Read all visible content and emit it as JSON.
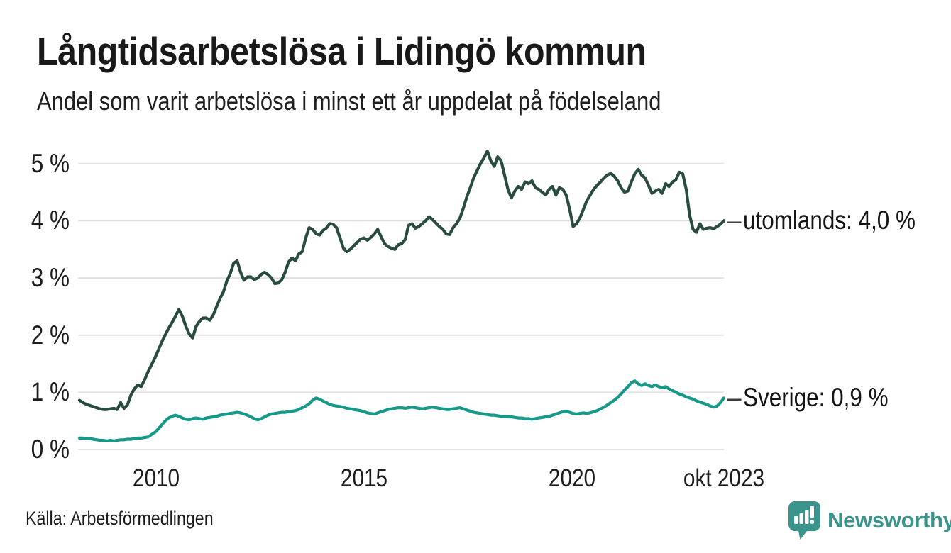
{
  "header": {
    "title": "Långtidsarbetslösa i Lidingö kommun",
    "subtitle": "Andel som varit arbetslösa i minst ett år uppdelat på födelseland"
  },
  "footer": {
    "source": "Källa: Arbetsförmedlingen",
    "brand": {
      "name": "Newsworthy",
      "color": "#3b948b",
      "icon": "bar-chart-pin-icon"
    }
  },
  "annotations": {
    "dash": "–"
  },
  "chart_data": {
    "type": "line",
    "title": "Långtidsarbetslösa i Lidingö kommun",
    "subtitle": "Andel som varit arbetslösa i minst ett år uppdelat på födelseland",
    "unit": "%",
    "frequency": "monthly",
    "x_start": "2008-02",
    "x_end": "2023-10",
    "ylim": [
      0,
      5.4
    ],
    "grid": "horizontal",
    "grid_color": "#e2e2e2",
    "legend_position": "end-of-line",
    "y_ticks": [
      {
        "label": "0 %",
        "value": 0
      },
      {
        "label": "1 %",
        "value": 1
      },
      {
        "label": "2 %",
        "value": 2
      },
      {
        "label": "3 %",
        "value": 3
      },
      {
        "label": "4 %",
        "value": 4
      },
      {
        "label": "5 %",
        "value": 5
      }
    ],
    "x_ticks": [
      {
        "label": "2010",
        "year": 2010
      },
      {
        "label": "2015",
        "year": 2015
      },
      {
        "label": "2020",
        "year": 2020
      },
      {
        "label": "okt 2023",
        "year": 2023.65
      }
    ],
    "series": [
      {
        "name": "utomlands",
        "color": "#2a4b3f",
        "end_label": "utomlands: 4,0 %",
        "last_value": 4.0,
        "values": [
          0.86,
          0.82,
          0.79,
          0.77,
          0.75,
          0.73,
          0.71,
          0.7,
          0.7,
          0.71,
          0.72,
          0.7,
          0.82,
          0.72,
          0.78,
          0.95,
          1.06,
          1.13,
          1.1,
          1.22,
          1.36,
          1.48,
          1.6,
          1.74,
          1.88,
          2.0,
          2.12,
          2.22,
          2.33,
          2.45,
          2.33,
          2.16,
          2.02,
          1.95,
          2.15,
          2.24,
          2.3,
          2.3,
          2.26,
          2.35,
          2.5,
          2.64,
          2.76,
          2.95,
          3.08,
          3.26,
          3.3,
          3.1,
          2.96,
          3.02,
          3.02,
          2.97,
          3.0,
          3.06,
          3.1,
          3.06,
          3.0,
          2.9,
          2.91,
          2.97,
          3.1,
          3.28,
          3.35,
          3.3,
          3.42,
          3.46,
          3.7,
          3.88,
          3.85,
          3.78,
          3.75,
          3.83,
          3.87,
          3.95,
          3.94,
          3.88,
          3.7,
          3.52,
          3.46,
          3.5,
          3.56,
          3.62,
          3.68,
          3.7,
          3.66,
          3.71,
          3.77,
          3.85,
          3.72,
          3.6,
          3.55,
          3.52,
          3.5,
          3.58,
          3.6,
          3.67,
          3.92,
          3.95,
          3.87,
          3.9,
          3.95,
          4.0,
          4.07,
          4.02,
          3.96,
          3.9,
          3.85,
          3.77,
          3.76,
          3.88,
          3.95,
          4.05,
          4.22,
          4.42,
          4.58,
          4.75,
          4.88,
          5.0,
          5.1,
          5.22,
          5.05,
          4.95,
          5.12,
          5.05,
          4.8,
          4.55,
          4.4,
          4.52,
          4.6,
          4.55,
          4.68,
          4.65,
          4.7,
          4.58,
          4.55,
          4.5,
          4.45,
          4.55,
          4.6,
          4.45,
          4.58,
          4.55,
          4.45,
          4.2,
          3.9,
          3.95,
          4.05,
          4.2,
          4.35,
          4.45,
          4.55,
          4.62,
          4.68,
          4.75,
          4.8,
          4.83,
          4.78,
          4.7,
          4.58,
          4.5,
          4.52,
          4.68,
          4.82,
          4.9,
          4.8,
          4.75,
          4.62,
          4.48,
          4.52,
          4.55,
          4.48,
          4.65,
          4.6,
          4.68,
          4.72,
          4.85,
          4.82,
          4.55,
          4.1,
          3.85,
          3.8,
          3.95,
          3.85,
          3.87,
          3.88,
          3.86,
          3.9,
          3.94,
          4.0
        ]
      },
      {
        "name": "Sverige",
        "color": "#17998a",
        "end_label": "Sverige: 0,9 %",
        "last_value": 0.9,
        "values": [
          0.2,
          0.2,
          0.19,
          0.19,
          0.18,
          0.17,
          0.16,
          0.16,
          0.15,
          0.16,
          0.15,
          0.16,
          0.17,
          0.17,
          0.18,
          0.18,
          0.19,
          0.2,
          0.2,
          0.21,
          0.22,
          0.26,
          0.3,
          0.36,
          0.43,
          0.5,
          0.55,
          0.58,
          0.6,
          0.58,
          0.55,
          0.53,
          0.52,
          0.54,
          0.55,
          0.54,
          0.53,
          0.55,
          0.56,
          0.57,
          0.58,
          0.6,
          0.61,
          0.62,
          0.63,
          0.64,
          0.65,
          0.64,
          0.62,
          0.6,
          0.57,
          0.54,
          0.52,
          0.54,
          0.57,
          0.6,
          0.62,
          0.63,
          0.64,
          0.65,
          0.65,
          0.66,
          0.67,
          0.68,
          0.7,
          0.73,
          0.76,
          0.8,
          0.86,
          0.9,
          0.88,
          0.85,
          0.82,
          0.79,
          0.77,
          0.76,
          0.75,
          0.74,
          0.72,
          0.71,
          0.7,
          0.69,
          0.68,
          0.66,
          0.64,
          0.63,
          0.62,
          0.64,
          0.66,
          0.68,
          0.7,
          0.71,
          0.72,
          0.73,
          0.73,
          0.72,
          0.73,
          0.74,
          0.73,
          0.72,
          0.71,
          0.72,
          0.73,
          0.74,
          0.73,
          0.72,
          0.71,
          0.7,
          0.7,
          0.71,
          0.72,
          0.73,
          0.71,
          0.69,
          0.67,
          0.65,
          0.64,
          0.63,
          0.62,
          0.61,
          0.6,
          0.6,
          0.59,
          0.58,
          0.58,
          0.57,
          0.57,
          0.56,
          0.55,
          0.55,
          0.54,
          0.54,
          0.53,
          0.54,
          0.55,
          0.56,
          0.57,
          0.58,
          0.6,
          0.62,
          0.64,
          0.66,
          0.67,
          0.65,
          0.63,
          0.62,
          0.63,
          0.64,
          0.63,
          0.64,
          0.66,
          0.68,
          0.71,
          0.74,
          0.78,
          0.82,
          0.86,
          0.91,
          0.97,
          1.04,
          1.1,
          1.17,
          1.2,
          1.15,
          1.12,
          1.15,
          1.12,
          1.1,
          1.13,
          1.1,
          1.08,
          1.1,
          1.06,
          1.03,
          1.0,
          0.97,
          0.95,
          0.92,
          0.9,
          0.88,
          0.85,
          0.83,
          0.81,
          0.79,
          0.76,
          0.74,
          0.76,
          0.82,
          0.9
        ]
      }
    ]
  }
}
